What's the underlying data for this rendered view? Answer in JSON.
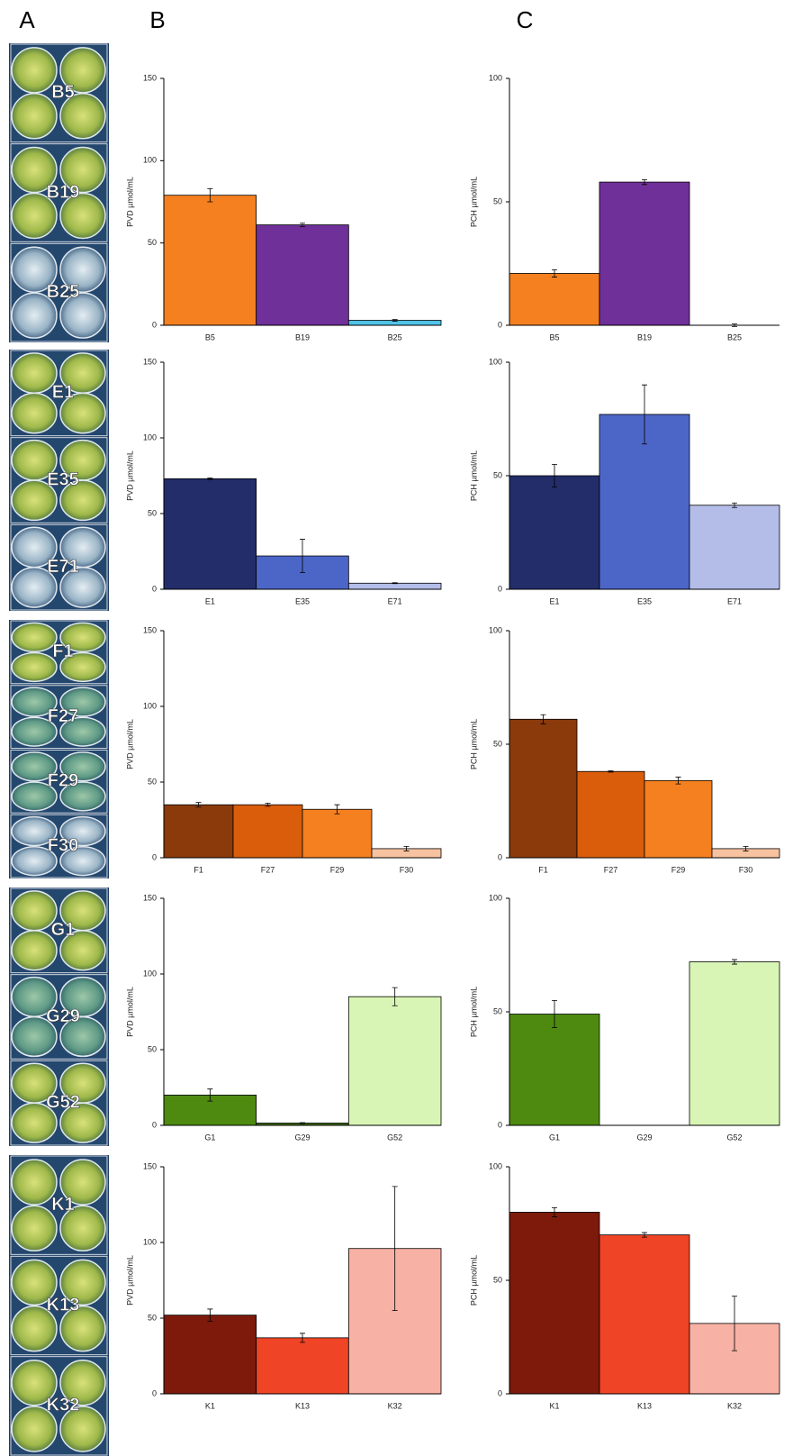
{
  "panel_labels": [
    "A",
    "B",
    "C"
  ],
  "photo_labels": [
    [
      "B5",
      "B19",
      "B25"
    ],
    [
      "E1",
      "E35",
      "E71"
    ],
    [
      "F1",
      "F27",
      "F29",
      "F30"
    ],
    [
      "G1",
      "G29",
      "G52"
    ],
    [
      "K1",
      "K13",
      "K32"
    ]
  ],
  "chart_data": [
    {
      "type": "bar",
      "y_label": "PVD µmol/mL",
      "categories": [
        "B5",
        "B19",
        "B25"
      ],
      "values": [
        79,
        61,
        3
      ],
      "errors": [
        4,
        1,
        0.5
      ],
      "colors": [
        "#f5801f",
        "#70309a",
        "#4fc3e8"
      ],
      "ylim": [
        0,
        150
      ],
      "yticks": [
        0,
        50,
        100,
        150
      ]
    },
    {
      "type": "bar",
      "y_label": "PCH µmol/mL",
      "categories": [
        "B5",
        "B19",
        "B25"
      ],
      "values": [
        21,
        58,
        0
      ],
      "errors": [
        1.5,
        1,
        0.5
      ],
      "colors": [
        "#f5801f",
        "#70309a",
        "#4fc3e8"
      ],
      "ylim": [
        0,
        100
      ],
      "yticks": [
        0,
        50,
        100
      ]
    },
    {
      "type": "bar",
      "y_label": "PVD µmol/mL",
      "categories": [
        "E1",
        "E35",
        "E71"
      ],
      "values": [
        73,
        22,
        4
      ],
      "errors": [
        0.5,
        11,
        0.3
      ],
      "colors": [
        "#232d6a",
        "#4c66c8",
        "#b3bde8"
      ],
      "ylim": [
        0,
        150
      ],
      "yticks": [
        0,
        50,
        100,
        150
      ]
    },
    {
      "type": "bar",
      "y_label": "PCH µmol/mL",
      "categories": [
        "E1",
        "E35",
        "E71"
      ],
      "values": [
        50,
        77,
        37
      ],
      "errors": [
        5,
        13,
        1
      ],
      "colors": [
        "#232d6a",
        "#4c66c8",
        "#b3bde8"
      ],
      "ylim": [
        0,
        100
      ],
      "yticks": [
        0,
        50,
        100
      ]
    },
    {
      "type": "bar",
      "y_label": "PVD µmol/mL",
      "categories": [
        "F1",
        "F27",
        "F29",
        "F30"
      ],
      "values": [
        35,
        35,
        32,
        6
      ],
      "errors": [
        1.5,
        1,
        3,
        1.5
      ],
      "colors": [
        "#8b3a0c",
        "#d95d0a",
        "#f5801f",
        "#f7c2a0"
      ],
      "ylim": [
        0,
        150
      ],
      "yticks": [
        0,
        50,
        100,
        150
      ]
    },
    {
      "type": "bar",
      "y_label": "PCH µmol/mL",
      "categories": [
        "F1",
        "F27",
        "F29",
        "F30"
      ],
      "values": [
        61,
        38,
        34,
        4
      ],
      "errors": [
        2,
        0.3,
        1.5,
        1
      ],
      "colors": [
        "#8b3a0c",
        "#d95d0a",
        "#f5801f",
        "#f7c2a0"
      ],
      "ylim": [
        0,
        100
      ],
      "yticks": [
        0,
        50,
        100
      ]
    },
    {
      "type": "bar",
      "y_label": "PVD µmol/mL",
      "categories": [
        "G1",
        "G29",
        "G52"
      ],
      "values": [
        20,
        1.5,
        85
      ],
      "errors": [
        4,
        0.3,
        6
      ],
      "colors": [
        "#4e8a10",
        "#3e6b12",
        "#d8f5b5"
      ],
      "ylim": [
        0,
        150
      ],
      "yticks": [
        0,
        50,
        100,
        150
      ]
    },
    {
      "type": "bar",
      "y_label": "PCH µmol/mL",
      "categories": [
        "G1",
        "G29",
        "G52"
      ],
      "values": [
        49,
        0,
        72
      ],
      "errors": [
        6,
        0,
        1
      ],
      "colors": [
        "#4e8a10",
        "#3e6b12",
        "#d8f5b5"
      ],
      "ylim": [
        0,
        100
      ],
      "yticks": [
        0,
        50,
        100
      ]
    },
    {
      "type": "bar",
      "y_label": "PVD µmol/mL",
      "categories": [
        "K1",
        "K13",
        "K32"
      ],
      "values": [
        52,
        37,
        96
      ],
      "errors": [
        4,
        3,
        41
      ],
      "colors": [
        "#7d1a0b",
        "#ef4425",
        "#f7b1a5"
      ],
      "ylim": [
        0,
        150
      ],
      "yticks": [
        0,
        50,
        100,
        150
      ]
    },
    {
      "type": "bar",
      "y_label": "PCH µmol/mL",
      "categories": [
        "K1",
        "K13",
        "K32"
      ],
      "values": [
        80,
        70,
        31
      ],
      "errors": [
        2,
        1,
        12
      ],
      "colors": [
        "#7d1a0b",
        "#ef4425",
        "#f7b1a5"
      ],
      "ylim": [
        0,
        100
      ],
      "yticks": [
        0,
        50,
        100
      ]
    }
  ]
}
